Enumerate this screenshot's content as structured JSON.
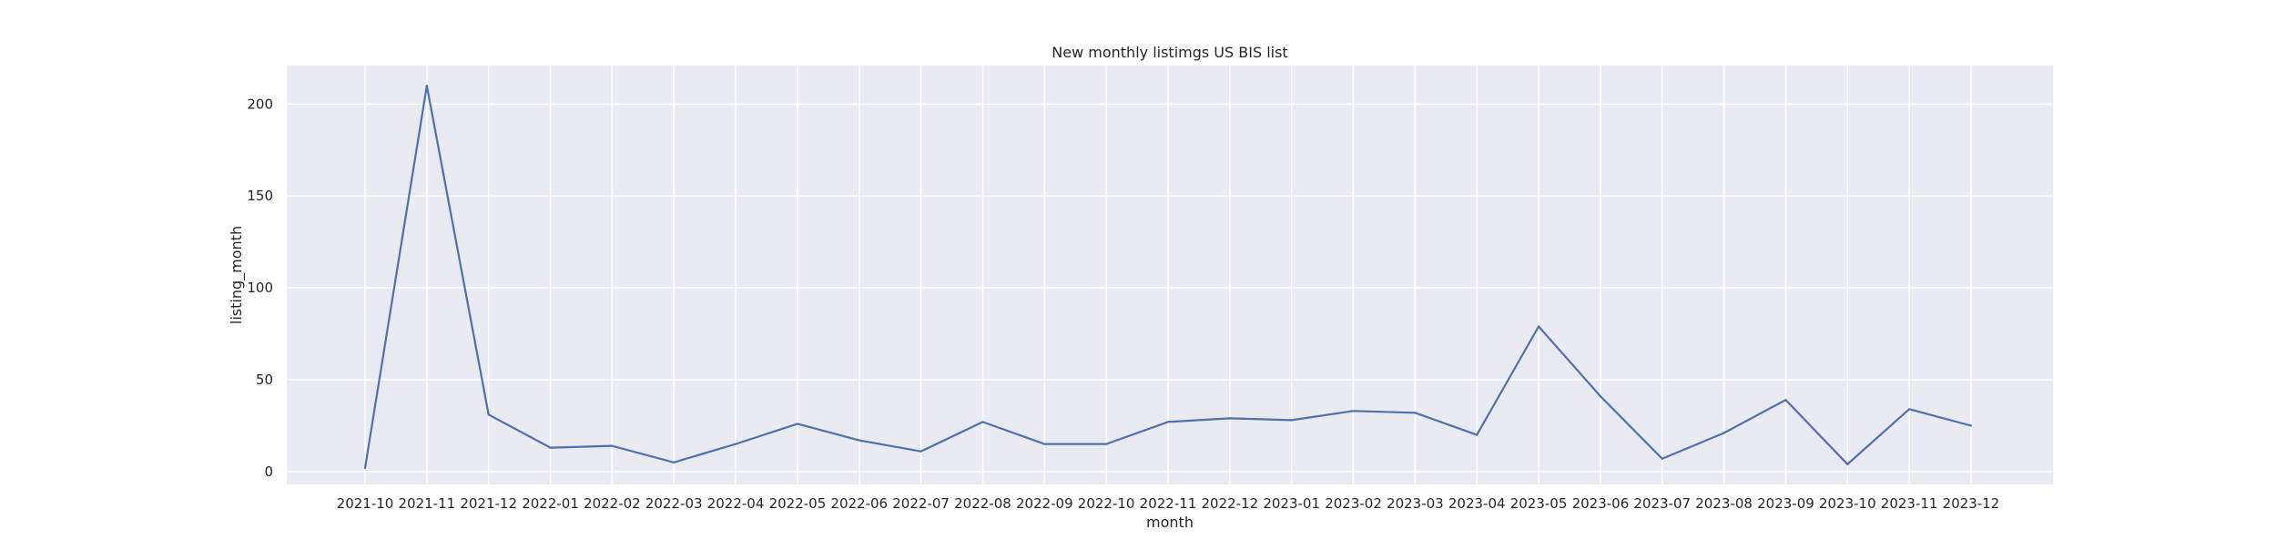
{
  "chart_data": {
    "type": "line",
    "title": "New monthly listimgs US BIS list",
    "xlabel": "month",
    "ylabel": "listing_month",
    "ylim": [
      -7,
      221
    ],
    "yticks": [
      0,
      50,
      100,
      150,
      200
    ],
    "grid": true,
    "x": [
      "2021-10",
      "2021-11",
      "2021-12",
      "2022-01",
      "2022-02",
      "2022-03",
      "2022-04",
      "2022-05",
      "2022-06",
      "2022-07",
      "2022-08",
      "2022-09",
      "2022-10",
      "2022-11",
      "2022-12",
      "2023-01",
      "2023-02",
      "2023-03",
      "2023-04",
      "2023-05",
      "2023-06",
      "2023-07",
      "2023-08",
      "2023-09",
      "2023-10",
      "2023-11",
      "2023-12"
    ],
    "series": [
      {
        "values": [
          2,
          210,
          31,
          13,
          14,
          5,
          15,
          26,
          17,
          11,
          27,
          15,
          15,
          27,
          29,
          28,
          33,
          32,
          20,
          79,
          41,
          7,
          21,
          39,
          4,
          34,
          25
        ],
        "color": "#4c72b0"
      }
    ],
    "colors": {
      "plot_background": "#eaeaf2",
      "grid": "#ffffff"
    }
  }
}
